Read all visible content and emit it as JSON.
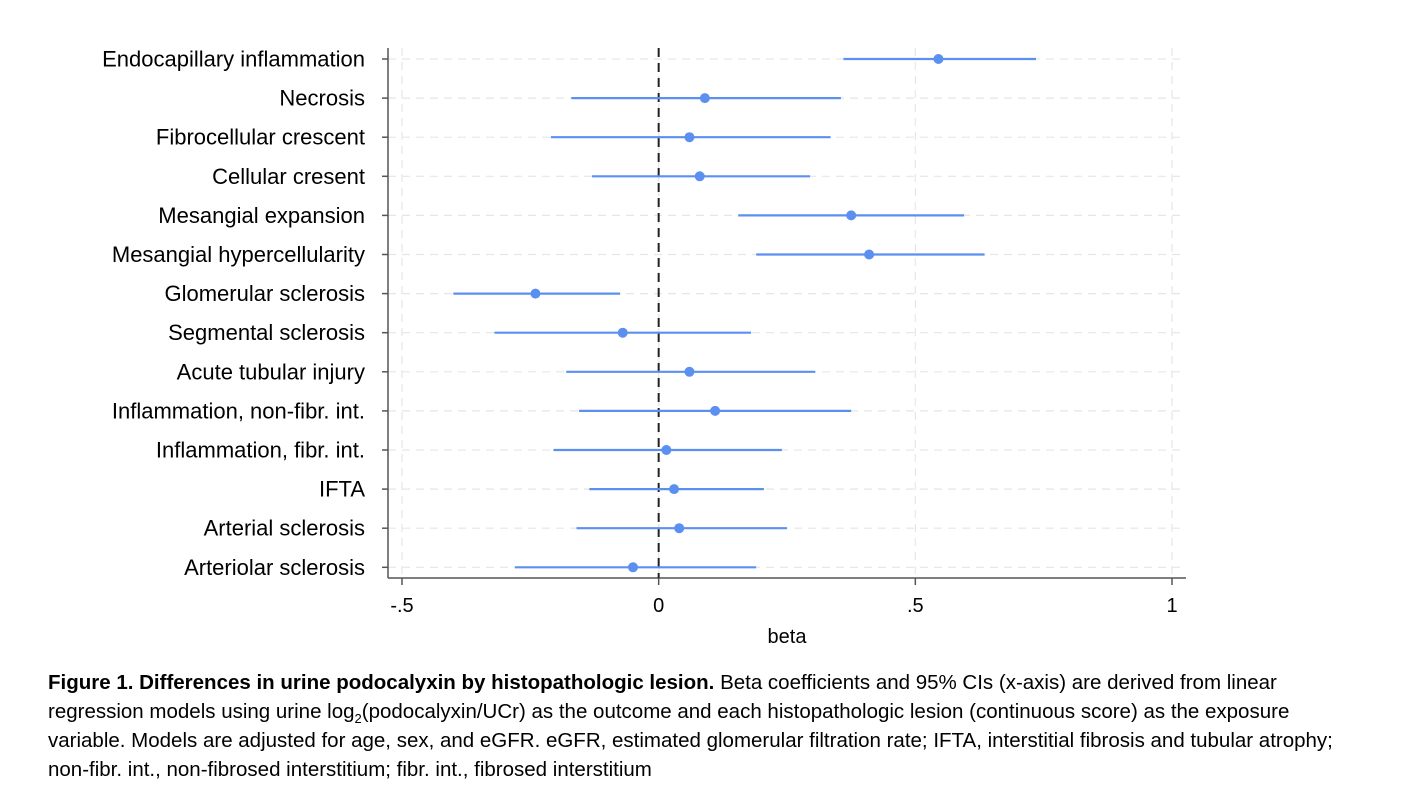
{
  "chart_data": {
    "type": "scatter",
    "subtype": "forest-plot",
    "categories": [
      "Endocapillary inflammation",
      "Necrosis",
      "Fibrocellular crescent",
      "Cellular cresent",
      "Mesangial expansion",
      "Mesangial hypercellularity",
      "Glomerular sclerosis",
      "Segmental sclerosis",
      "Acute tubular injury",
      "Inflammation, non-fibr. int.",
      "Inflammation, fibr. int.",
      "IFTA",
      "Arterial sclerosis",
      "Arteriolar sclerosis"
    ],
    "series": [
      {
        "estimate": [
          0.545,
          0.09,
          0.06,
          0.08,
          0.375,
          0.41,
          -0.24,
          -0.07,
          0.06,
          0.11,
          0.015,
          0.03,
          0.04,
          -0.05
        ],
        "ci_lower": [
          0.36,
          -0.17,
          -0.21,
          -0.13,
          0.155,
          0.19,
          -0.4,
          -0.32,
          -0.18,
          -0.155,
          -0.205,
          -0.135,
          -0.16,
          -0.28
        ],
        "ci_upper": [
          0.735,
          0.355,
          0.335,
          0.295,
          0.595,
          0.635,
          -0.075,
          0.18,
          0.305,
          0.375,
          0.24,
          0.205,
          0.25,
          0.19
        ],
        "color": "#5b8ff0"
      }
    ],
    "xlabel": "beta",
    "ylabel": "",
    "xlim": [
      -0.5,
      1.0
    ],
    "xticks": [
      -0.5,
      0,
      0.5,
      1
    ],
    "xtick_labels": [
      "-.5",
      "0",
      ".5",
      "1"
    ],
    "reference_line": {
      "x": 0,
      "style": "dashed",
      "color": "#222222"
    },
    "grid": "on (dashed, light gray)",
    "legend": "none"
  },
  "caption": {
    "bold_part": "Figure 1. Differences in urine podocalyxin by histopathologic lesion.",
    "seg1": " Beta coefficients and 95% CIs (x-axis) are derived from linear regression models using urine log",
    "sub": "2",
    "seg2": "(podocalyxin/UCr) as the outcome and each histopathologic lesion (continuous score) as the exposure variable. Models are adjusted for age, sex, and eGFR. eGFR, estimated glomerular filtration rate; IFTA, interstitial fibrosis and tubular atrophy; non-fibr. int., non-fibrosed interstitium; fibr. int., fibrosed interstitium"
  }
}
